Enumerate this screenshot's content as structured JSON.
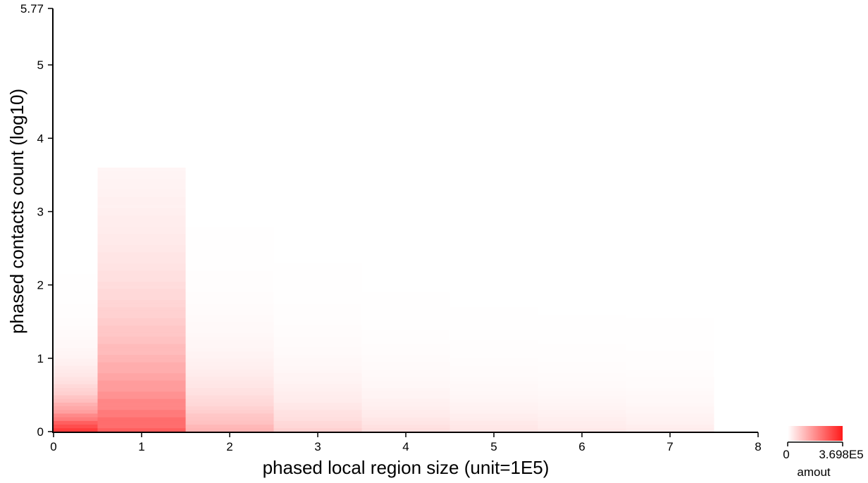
{
  "chart_data": {
    "type": "heatmap",
    "xlabel": "phased local region size (unit=1E5)",
    "ylabel": "phased contacts count (log10)",
    "xlim": [
      0,
      8
    ],
    "ylim": [
      0,
      5.77
    ],
    "xticks": [
      "0",
      "1",
      "2",
      "3",
      "4",
      "5",
      "6",
      "7",
      "8"
    ],
    "yticks": [
      "0",
      "1",
      "2",
      "3",
      "4",
      "5",
      "5.77"
    ],
    "color_low": "#ffffff",
    "color_high": "#ff1a1a",
    "legend": {
      "title": "amout",
      "min_label": "0",
      "max_label": "3.698E5",
      "min": 0,
      "max": 369800
    },
    "columns": [
      {
        "x_start": 0.0,
        "x_end": 0.5,
        "x_center": 0,
        "ymax": 2.6,
        "peak": 369800,
        "decay": 0.35
      },
      {
        "x_start": 0.5,
        "x_end": 1.5,
        "x_center": 1,
        "ymax": 3.6,
        "peak": 270000,
        "decay": 1.3
      },
      {
        "x_start": 1.5,
        "x_end": 2.5,
        "x_center": 2,
        "ymax": 2.9,
        "peak": 135000,
        "decay": 0.55
      },
      {
        "x_start": 2.5,
        "x_end": 3.5,
        "x_center": 3,
        "ymax": 2.5,
        "peak": 80000,
        "decay": 0.5
      },
      {
        "x_start": 3.5,
        "x_end": 4.5,
        "x_center": 4,
        "ymax": 2.35,
        "peak": 58000,
        "decay": 0.45
      },
      {
        "x_start": 4.5,
        "x_end": 5.5,
        "x_center": 5,
        "ymax": 2.2,
        "peak": 48000,
        "decay": 0.42
      },
      {
        "x_start": 5.5,
        "x_end": 6.5,
        "x_center": 6,
        "ymax": 2.05,
        "peak": 40000,
        "decay": 0.42
      },
      {
        "x_start": 6.5,
        "x_end": 7.5,
        "x_center": 7,
        "ymax": 1.85,
        "peak": 34000,
        "decay": 0.42
      }
    ]
  }
}
